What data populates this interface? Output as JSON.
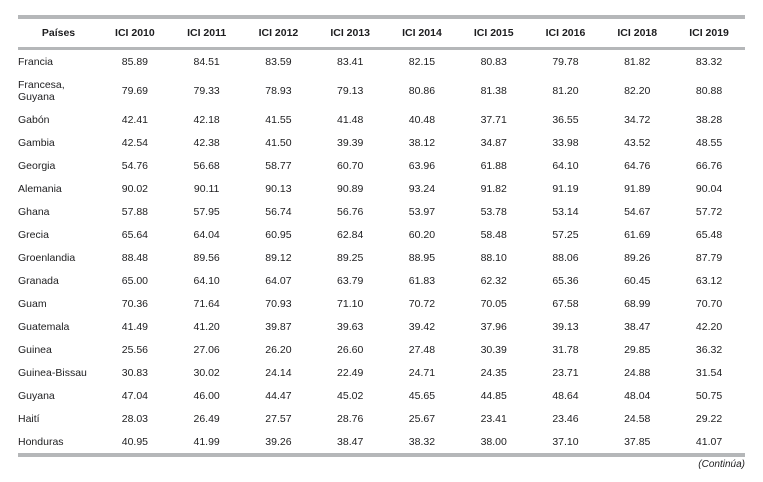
{
  "table": {
    "columns": [
      "Países",
      "ICI 2010",
      "ICI 2011",
      "ICI 2012",
      "ICI 2013",
      "ICI 2014",
      "ICI 2015",
      "ICI 2016",
      "ICI 2018",
      "ICI 2019"
    ],
    "rows": [
      {
        "country": "Francia",
        "values": [
          "85.89",
          "84.51",
          "83.59",
          "83.41",
          "82.15",
          "80.83",
          "79.78",
          "81.82",
          "83.32"
        ]
      },
      {
        "country": "Francesa,\nGuyana",
        "values": [
          "79.69",
          "79.33",
          "78.93",
          "79.13",
          "80.86",
          "81.38",
          "81.20",
          "82.20",
          "80.88"
        ]
      },
      {
        "country": "Gabón",
        "values": [
          "42.41",
          "42.18",
          "41.55",
          "41.48",
          "40.48",
          "37.71",
          "36.55",
          "34.72",
          "38.28"
        ]
      },
      {
        "country": "Gambia",
        "values": [
          "42.54",
          "42.38",
          "41.50",
          "39.39",
          "38.12",
          "34.87",
          "33.98",
          "43.52",
          "48.55"
        ]
      },
      {
        "country": "Georgia",
        "values": [
          "54.76",
          "56.68",
          "58.77",
          "60.70",
          "63.96",
          "61.88",
          "64.10",
          "64.76",
          "66.76"
        ]
      },
      {
        "country": "Alemania",
        "values": [
          "90.02",
          "90.11",
          "90.13",
          "90.89",
          "93.24",
          "91.82",
          "91.19",
          "91.89",
          "90.04"
        ]
      },
      {
        "country": "Ghana",
        "values": [
          "57.88",
          "57.95",
          "56.74",
          "56.76",
          "53.97",
          "53.78",
          "53.14",
          "54.67",
          "57.72"
        ]
      },
      {
        "country": "Grecia",
        "values": [
          "65.64",
          "64.04",
          "60.95",
          "62.84",
          "60.20",
          "58.48",
          "57.25",
          "61.69",
          "65.48"
        ]
      },
      {
        "country": "Groenlandia",
        "values": [
          "88.48",
          "89.56",
          "89.12",
          "89.25",
          "88.95",
          "88.10",
          "88.06",
          "89.26",
          "87.79"
        ]
      },
      {
        "country": "Granada",
        "values": [
          "65.00",
          "64.10",
          "64.07",
          "63.79",
          "61.83",
          "62.32",
          "65.36",
          "60.45",
          "63.12"
        ]
      },
      {
        "country": "Guam",
        "values": [
          "70.36",
          "71.64",
          "70.93",
          "71.10",
          "70.72",
          "70.05",
          "67.58",
          "68.99",
          "70.70"
        ]
      },
      {
        "country": "Guatemala",
        "values": [
          "41.49",
          "41.20",
          "39.87",
          "39.63",
          "39.42",
          "37.96",
          "39.13",
          "38.47",
          "42.20"
        ]
      },
      {
        "country": "Guinea",
        "values": [
          "25.56",
          "27.06",
          "26.20",
          "26.60",
          "27.48",
          "30.39",
          "31.78",
          "29.85",
          "36.32"
        ]
      },
      {
        "country": "Guinea-Bissau",
        "values": [
          "30.83",
          "30.02",
          "24.14",
          "22.49",
          "24.71",
          "24.35",
          "23.71",
          "24.88",
          "31.54"
        ]
      },
      {
        "country": "Guyana",
        "values": [
          "47.04",
          "46.00",
          "44.47",
          "45.02",
          "45.65",
          "44.85",
          "48.64",
          "48.04",
          "50.75"
        ]
      },
      {
        "country": "Haití",
        "values": [
          "28.03",
          "26.49",
          "27.57",
          "28.76",
          "25.67",
          "23.41",
          "23.46",
          "24.58",
          "29.22"
        ]
      },
      {
        "country": "Honduras",
        "values": [
          "40.95",
          "41.99",
          "39.26",
          "38.47",
          "38.32",
          "38.00",
          "37.10",
          "37.85",
          "41.07"
        ]
      }
    ]
  },
  "footer": {
    "note": "(Continúa)"
  },
  "colors": {
    "rule_gray": "#b5b7b9",
    "text": "#1d1d1f",
    "background": "#ffffff"
  }
}
